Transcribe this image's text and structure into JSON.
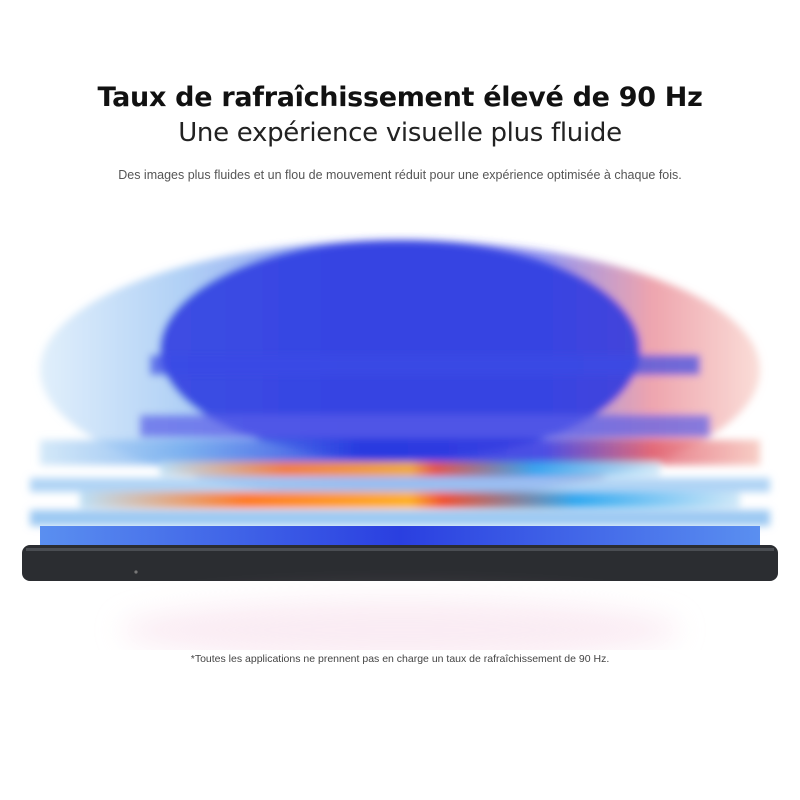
{
  "header": {
    "title": "Taux de rafraîchissement élevé de 90 Hz",
    "subtitle": "Une expérience visuelle plus fluide",
    "description": "Des images plus fluides et un flou de mouvement réduit pour une expérience optimisée à chaque fois."
  },
  "illustration": {
    "subject": "tablet-motion-blur",
    "colors": {
      "blue": "#2a3fe0",
      "light_blue": "#8ec5f0",
      "red": "#f04a2e",
      "orange": "#ff8a1a",
      "purple": "#7a3ad8",
      "frame": "#2b2d31"
    }
  },
  "footnote": "*Toutes les applications ne prennent pas en charge un taux de rafraîchissement de 90 Hz."
}
